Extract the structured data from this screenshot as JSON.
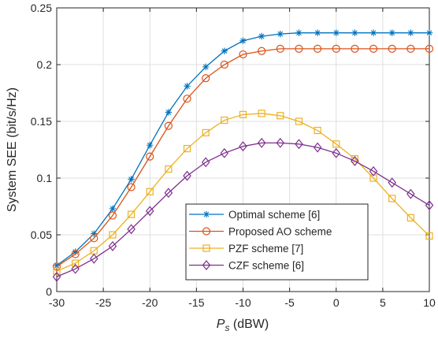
{
  "chart_data": {
    "type": "line",
    "title": "",
    "xlabel_main": "P",
    "xlabel_sub": "s",
    "xlabel_unit": " (dBW)",
    "ylabel": "System SEE  (bit/s/Hz)",
    "xlim": [
      -30,
      10
    ],
    "ylim": [
      0,
      0.25
    ],
    "x_ticks": [
      -30,
      -25,
      -20,
      -15,
      -10,
      -5,
      0,
      5,
      10
    ],
    "x_tick_labels": [
      "-30",
      "-25",
      "-20",
      "-15",
      "-10",
      "-5",
      "0",
      "5",
      "10"
    ],
    "y_ticks": [
      0,
      0.05,
      0.1,
      0.15,
      0.2,
      0.25
    ],
    "y_tick_labels": [
      "0",
      "0.05",
      "0.1",
      "0.15",
      "0.2",
      "0.25"
    ],
    "grid": true,
    "legend_position": "bottom-right",
    "x": [
      -30,
      -28,
      -26,
      -24,
      -22,
      -20,
      -18,
      -16,
      -14,
      -12,
      -10,
      -8,
      -6,
      -4,
      -2,
      0,
      2,
      4,
      6,
      8,
      10
    ],
    "series": [
      {
        "name": "Optimal scheme [6]",
        "color": "#0072BD",
        "marker": "asterisk",
        "values": [
          0.023,
          0.035,
          0.051,
          0.073,
          0.099,
          0.129,
          0.158,
          0.181,
          0.198,
          0.212,
          0.221,
          0.225,
          0.227,
          0.228,
          0.228,
          0.228,
          0.228,
          0.228,
          0.228,
          0.228,
          0.228
        ]
      },
      {
        "name": "Proposed AO scheme",
        "color": "#D95319",
        "marker": "circle",
        "values": [
          0.022,
          0.033,
          0.047,
          0.067,
          0.092,
          0.119,
          0.146,
          0.17,
          0.188,
          0.2,
          0.209,
          0.212,
          0.214,
          0.214,
          0.214,
          0.214,
          0.214,
          0.214,
          0.214,
          0.214,
          0.214
        ]
      },
      {
        "name": "PZF scheme [7]",
        "color": "#EDB120",
        "marker": "square",
        "values": [
          0.018,
          0.025,
          0.036,
          0.05,
          0.068,
          0.088,
          0.108,
          0.126,
          0.14,
          0.151,
          0.156,
          0.157,
          0.155,
          0.15,
          0.142,
          0.13,
          0.117,
          0.1,
          0.082,
          0.065,
          0.049
        ]
      },
      {
        "name": "CZF scheme [6]",
        "color": "#7E2F8E",
        "marker": "diamond",
        "values": [
          0.013,
          0.02,
          0.029,
          0.04,
          0.055,
          0.071,
          0.087,
          0.102,
          0.114,
          0.122,
          0.128,
          0.131,
          0.131,
          0.13,
          0.127,
          0.122,
          0.115,
          0.106,
          0.096,
          0.086,
          0.076
        ]
      }
    ]
  }
}
